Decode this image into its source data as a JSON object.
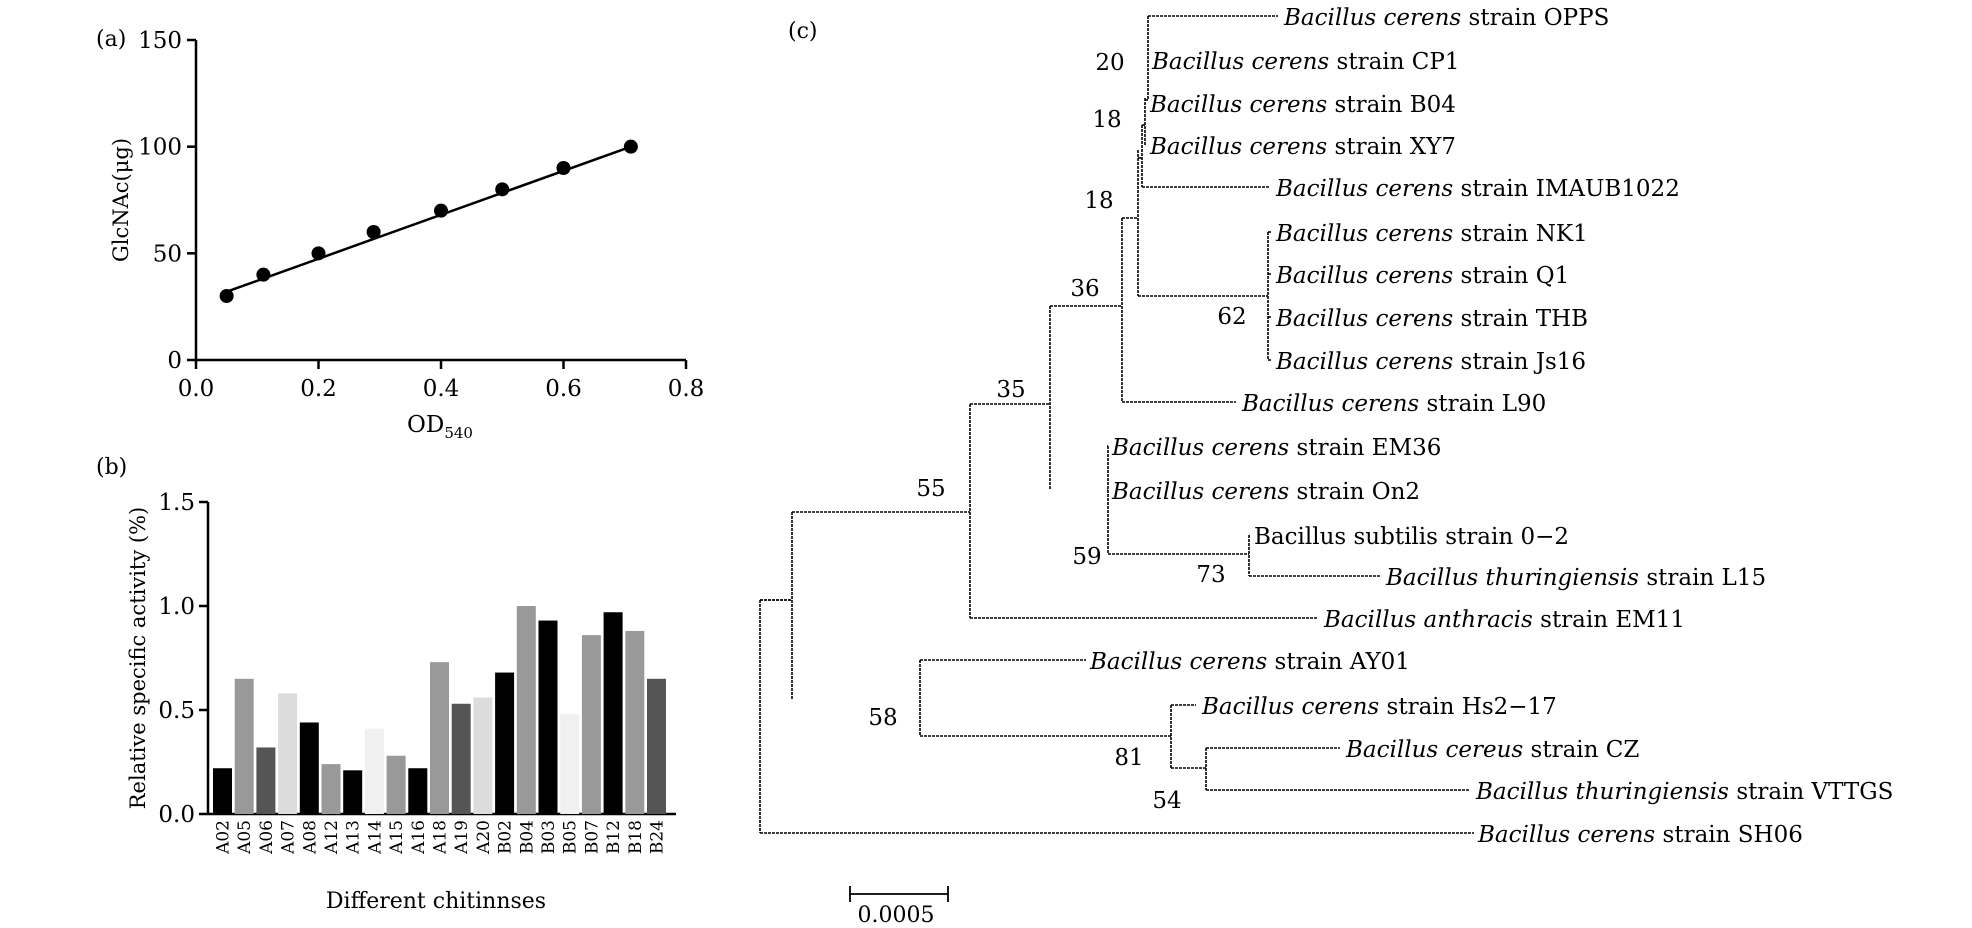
{
  "chart_data": [
    {
      "panel": "(a)",
      "type": "scatter",
      "xlabel": "OD",
      "xlabel_sub": "540",
      "ylabel": "GlcNAc(μg)",
      "xlim": [
        0.0,
        0.8
      ],
      "ylim": [
        0,
        150
      ],
      "xticks": [
        "0.0",
        "0.2",
        "0.4",
        "0.6",
        "0.8"
      ],
      "yticks": [
        "0",
        "50",
        "100",
        "150"
      ],
      "x": [
        0.05,
        0.11,
        0.2,
        0.29,
        0.4,
        0.5,
        0.6,
        0.71
      ],
      "y": [
        30,
        40,
        50,
        60,
        70,
        80,
        90,
        100
      ],
      "fit_line": {
        "x": [
          0.05,
          0.71
        ],
        "y": [
          32,
          100
        ]
      }
    },
    {
      "panel": "(b)",
      "type": "bar",
      "xlabel": "Different chitinnses",
      "ylabel": "Relative specific activity (%)",
      "ylim": [
        0.0,
        1.5
      ],
      "yticks": [
        "0.0",
        "0.5",
        "1.0",
        "1.5"
      ],
      "categories": [
        "A02",
        "A05",
        "A06",
        "A07",
        "A08",
        "A12",
        "A13",
        "A14",
        "A15",
        "A16",
        "A18",
        "A19",
        "A20",
        "B02",
        "B04",
        "B03",
        "B05",
        "B07",
        "B12",
        "B18",
        "B24"
      ],
      "values": [
        0.22,
        0.65,
        0.32,
        0.58,
        0.44,
        0.24,
        0.21,
        0.41,
        0.28,
        0.22,
        0.73,
        0.53,
        0.56,
        0.68,
        1.0,
        0.93,
        0.48,
        0.86,
        0.97,
        0.88,
        0.65
      ],
      "colors": [
        "#000000",
        "#999999",
        "#555555",
        "#dcdcdc",
        "#000000",
        "#999999",
        "#000000",
        "#f0f0f0",
        "#999999",
        "#000000",
        "#999999",
        "#555555",
        "#dcdcdc",
        "#000000",
        "#999999",
        "#000000",
        "#f0f0f0",
        "#999999",
        "#000000",
        "#999999",
        "#555555"
      ]
    },
    {
      "panel": "(c)",
      "type": "tree",
      "scale_label": "0.0005",
      "leaves": [
        {
          "genus": "Bacillus cerens",
          "strain": "strain OPPS"
        },
        {
          "genus": "Bacillus cerens",
          "strain": "strain CP1"
        },
        {
          "genus": "Bacillus cerens",
          "strain": "strain B04"
        },
        {
          "genus": "Bacillus cerens",
          "strain": "strain XY7"
        },
        {
          "genus": "Bacillus cerens",
          "strain": "strain IMAUB1022"
        },
        {
          "genus": "Bacillus cerens",
          "strain": "strain NK1"
        },
        {
          "genus": "Bacillus cerens",
          "strain": "strain Q1"
        },
        {
          "genus": "Bacillus cerens",
          "strain": "strain THB"
        },
        {
          "genus": "Bacillus cerens",
          "strain": "strain Js16"
        },
        {
          "genus": "Bacillus cerens",
          "strain": "strain L90"
        },
        {
          "genus": "Bacillus cerens",
          "strain": "strain EM36"
        },
        {
          "genus": "Bacillus cerens",
          "strain": "strain On2"
        },
        {
          "genus": "",
          "strain": "Bacillus subtilis strain 0−2"
        },
        {
          "genus": "Bacillus thuringiensis",
          "strain": "strain L15"
        },
        {
          "genus": "Bacillus anthracis",
          "strain": "strain EM11"
        },
        {
          "genus": "Bacillus cerens",
          "strain": "strain AY01"
        },
        {
          "genus": "Bacillus cerens",
          "strain": "strain Hs2−17"
        },
        {
          "genus": "Bacillus cereus",
          "strain": "strain CZ"
        },
        {
          "genus": "Bacillus thuringiensis",
          "strain": "strain VTTGS"
        },
        {
          "genus": "Bacillus cerens",
          "strain": "strain SH06"
        }
      ],
      "bootstrap": [
        "20",
        "18",
        "18",
        "36",
        "62",
        "35",
        "55",
        "59",
        "73",
        "58",
        "81",
        "54"
      ]
    }
  ]
}
